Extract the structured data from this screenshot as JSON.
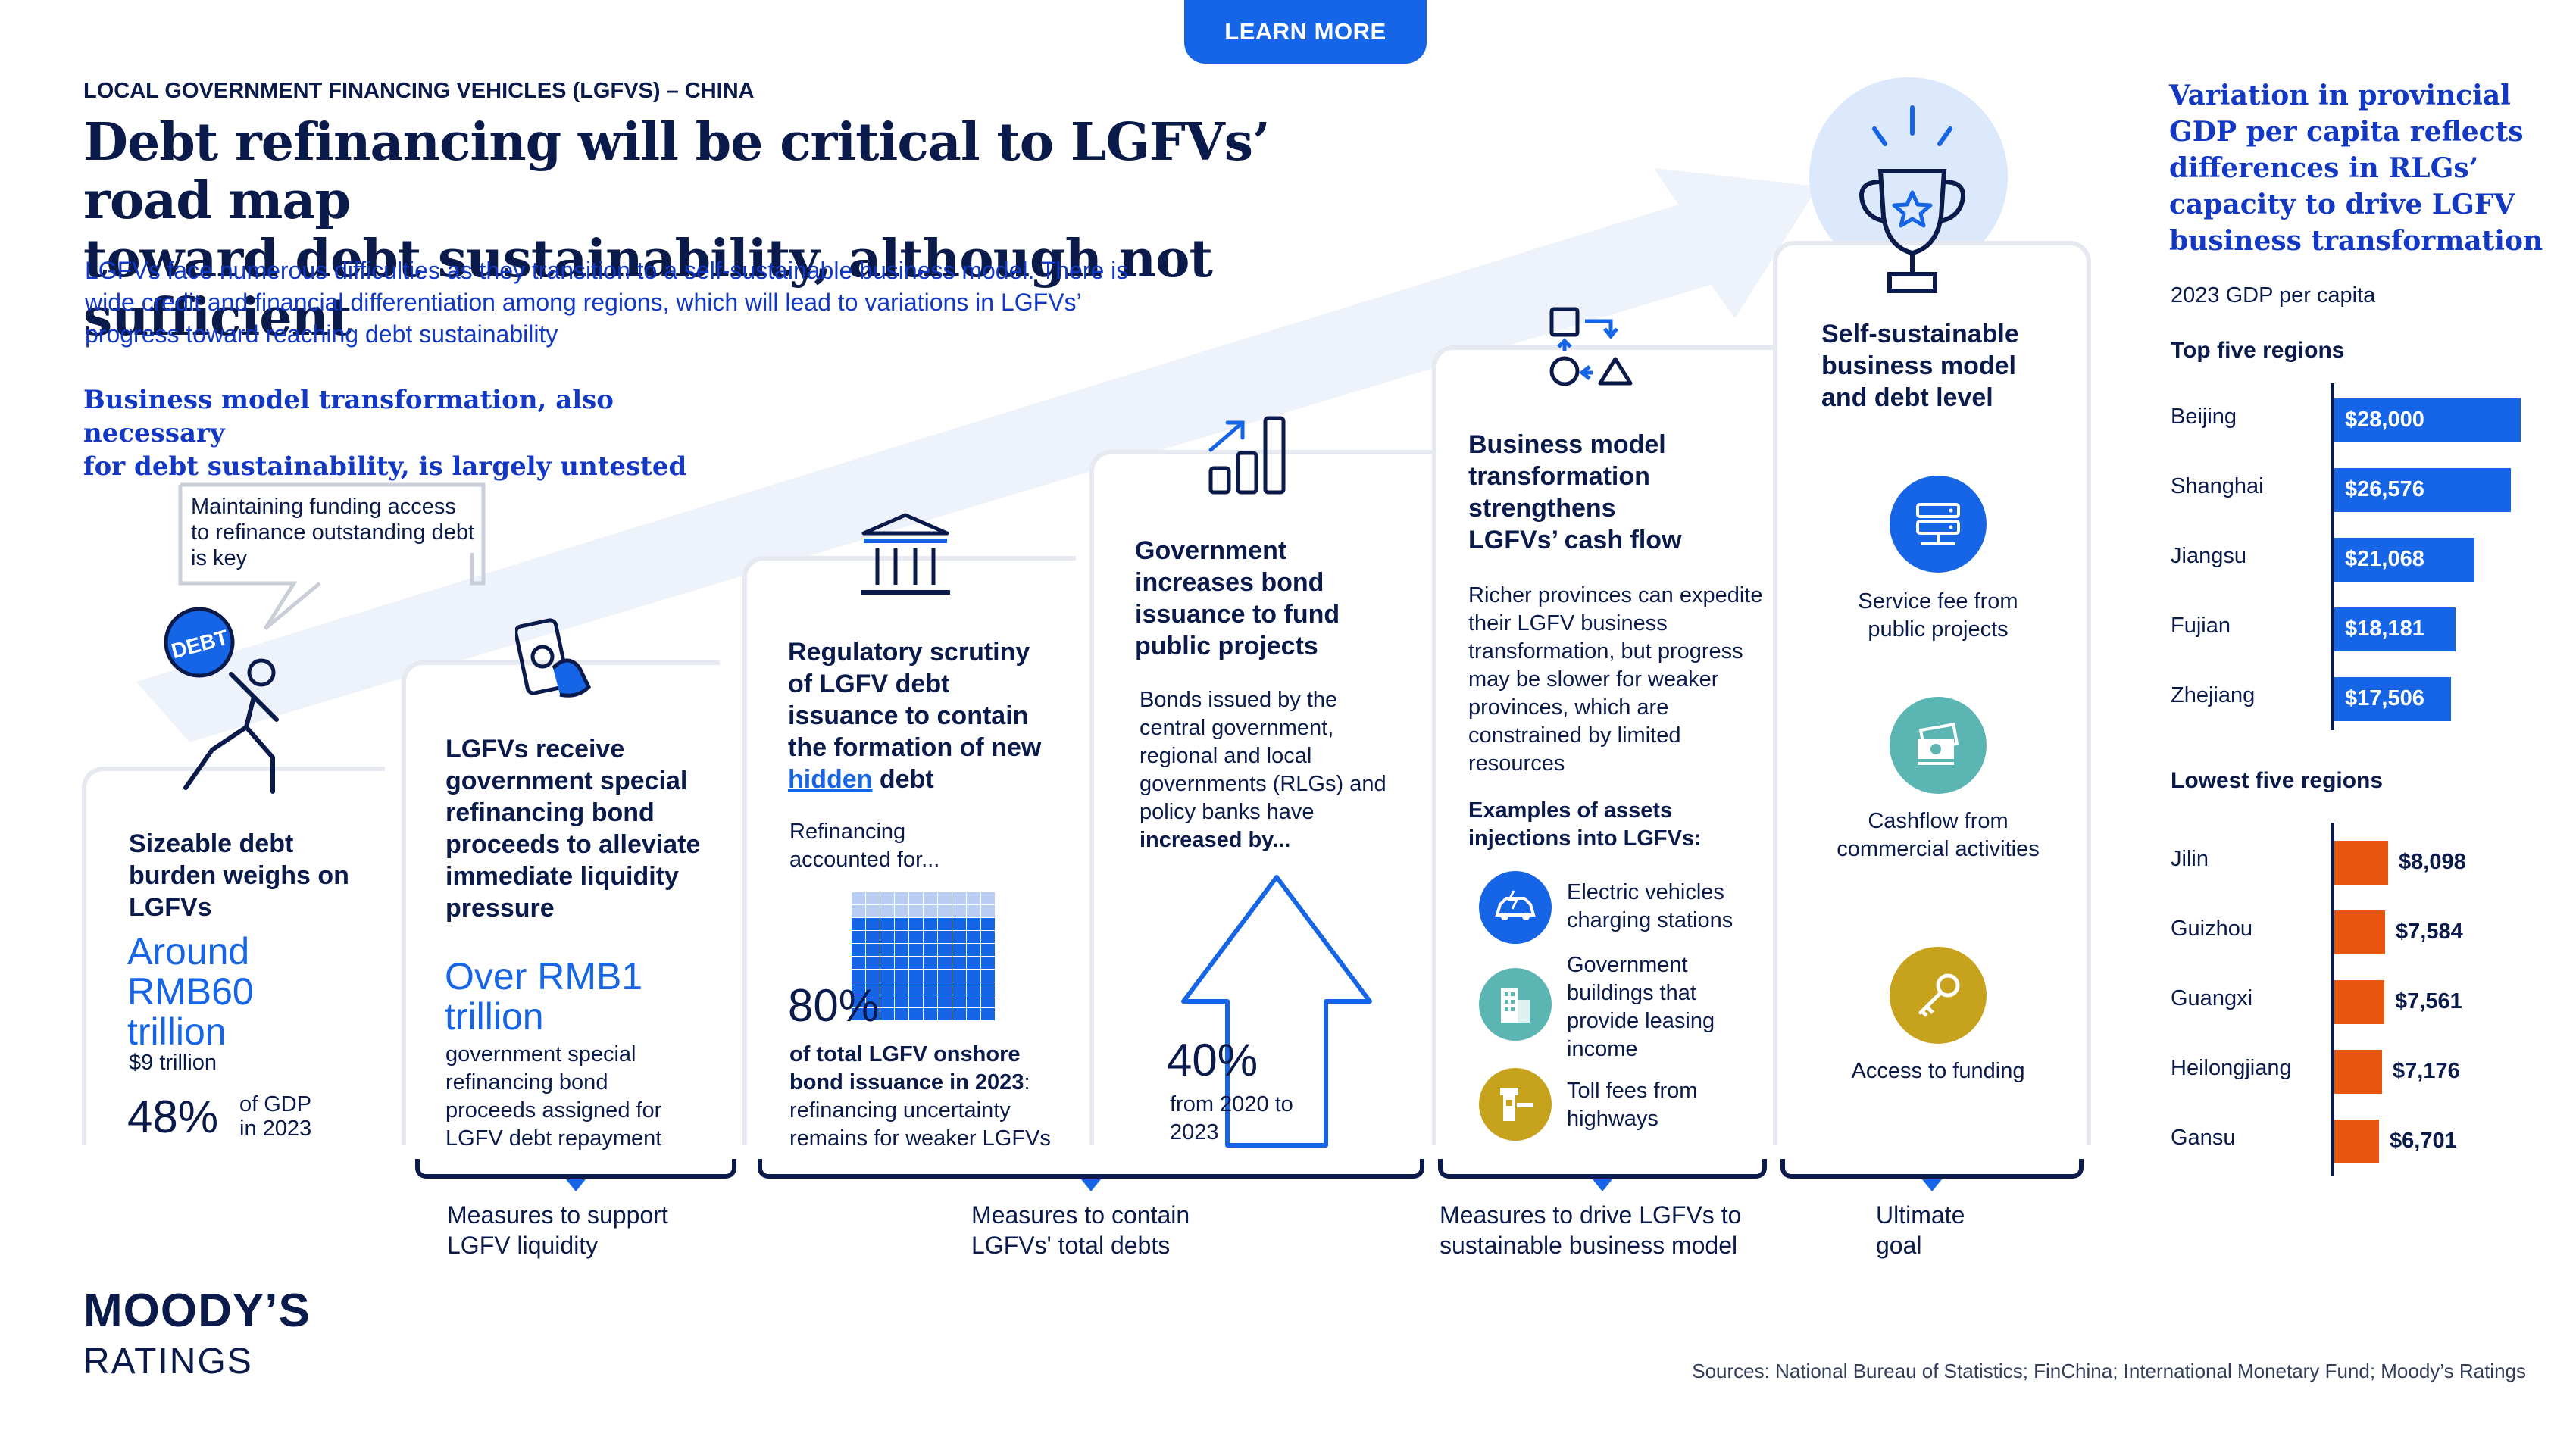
{
  "header": {
    "learn_more": "LEARN MORE",
    "kicker": "LOCAL GOVERNMENT FINANCING VEHICLES (LGFVS) – CHINA",
    "headline_line1": "Debt refinancing will be critical to LGFVs’ road map",
    "headline_line2": "toward debt sustainability, although not sufficient",
    "intro": "LGFVs face numerous difficulties as they transition to a self-sustainable business model. There is wide credit and financial differentiation among regions, which will lead to variations in LGFVs’ progress toward reaching debt sustainability",
    "subhead_line1": "Business model transformation, also necessary",
    "subhead_line2": "for debt sustainability, is largely untested"
  },
  "step1": {
    "bubble": "Maintaining funding access to refinance outstanding debt is key",
    "debt_tag": "DEBT",
    "title": "Sizeable debt burden weighs on LGFVs",
    "big": "Around RMB60 trillion",
    "sub": "$9 trillion",
    "pct": "48%",
    "pct_label": "of GDP in 2023"
  },
  "step2": {
    "title": "LGFVs receive government special refinancing bond proceeds to alleviate immediate liquidity pressure",
    "big": "Over RMB1 trillion",
    "desc": "government special refinancing bond proceeds assigned for LGFV debt repayment"
  },
  "step3": {
    "title_a": "Regulatory scrutiny of LGFV debt issuance to contain the formation of new ",
    "title_link": "hidden",
    "title_b": " debt",
    "lead": "Refinancing accounted for...",
    "pct": "80%",
    "desc_bold": "of total LGFV onshore bond issuance in 2023",
    "desc_rest": ": refinancing uncertainty remains for weaker LGFVs"
  },
  "step4": {
    "title": "Government increases bond issuance to fund public projects",
    "lead_a": "Bonds issued by the central government, regional and local governments (RLGs) and policy banks have ",
    "lead_bold": "increased by...",
    "pct": "40%",
    "desc": "from 2020 to 2023"
  },
  "step5": {
    "title": "Business model transformation strengthens LGFVs’ cash flow",
    "desc": "Richer provinces can expedite their LGFV business transformation, but progress may be slower for weaker provinces, which are constrained by limited resources",
    "examples": "Examples of assets injections into LGFVs:",
    "items": [
      {
        "icon": "electric-car-icon",
        "label": "Electric vehicles charging stations",
        "color": "#1565e6"
      },
      {
        "icon": "building-icon",
        "label": "Government buildings that provide leasing income",
        "color": "#5bb5b3"
      },
      {
        "icon": "toll-gate-icon",
        "label": "Toll fees from highways",
        "color": "#c7a21d"
      }
    ]
  },
  "step6": {
    "title": "Self-sustainable business model and debt level",
    "items": [
      {
        "icon": "server-icon",
        "label": "Service fee from public projects",
        "color": "#1565e6"
      },
      {
        "icon": "cash-stack-icon",
        "label": "Cashflow from commercial activities",
        "color": "#5bb5b3"
      },
      {
        "icon": "key-icon",
        "label": "Access to funding",
        "color": "#c7a21d"
      }
    ]
  },
  "brackets": {
    "liquidity": "Measures to support LGFV liquidity",
    "contain": "Measures to contain LGFVs' total debts",
    "business": "Measures to drive LGFVs to sustainable business model",
    "goal": "Ultimate goal"
  },
  "footer": {
    "logo_top": "MOODY’S",
    "logo_bottom": "RATINGS",
    "sources": "Sources: National Bureau of Statistics; FinChina; International Monetary Fund; Moody’s Ratings"
  },
  "sidebar": {
    "title": "Variation in provincial GDP per capita reflects differences in RLGs’ capacity to drive LGFV business transformation",
    "subtitle": "2023 GDP per capita",
    "top_label": "Top five regions",
    "low_label": "Lowest five regions"
  },
  "chart_data": {
    "type": "bar",
    "title": "Variation in provincial GDP per capita reflects differences in RLGs’ capacity to drive LGFV business transformation",
    "subtitle": "2023 GDP per capita",
    "orientation": "horizontal",
    "unit": "USD",
    "colors": {
      "top": "#1565e6",
      "low": "#e8550f"
    },
    "series": [
      {
        "name": "Top five regions",
        "categories": [
          "Beijing",
          "Shanghai",
          "Jiangsu",
          "Fujian",
          "Zhejiang"
        ],
        "values": [
          28000,
          26576,
          21068,
          18181,
          17506
        ],
        "labels": [
          "$28,000",
          "$26,576",
          "$21,068",
          "$18,181",
          "$17,506"
        ]
      },
      {
        "name": "Lowest five regions",
        "categories": [
          "Jilin",
          "Guizhou",
          "Guangxi",
          "Heilongjiang",
          "Gansu"
        ],
        "values": [
          8098,
          7584,
          7561,
          7176,
          6701
        ],
        "labels": [
          "$8,098",
          "$7,584",
          "$7,561",
          "$7,176",
          "$6,701"
        ]
      }
    ],
    "xlim": [
      0,
      28000
    ]
  }
}
